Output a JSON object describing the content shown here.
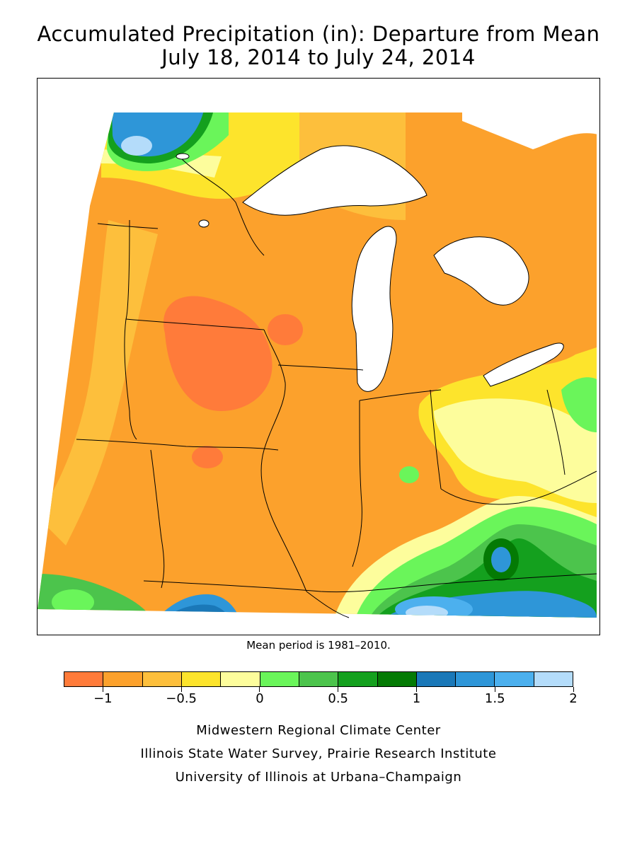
{
  "title": {
    "line1": "Accumulated Precipitation (in): Departure from Mean",
    "line2": "July 18, 2014 to July 24, 2014"
  },
  "note": "Mean period is 1981–2010.",
  "legend": {
    "colors": [
      "#ff7b3a",
      "#fca12c",
      "#fdbf3c",
      "#fde42c",
      "#fdfd9c",
      "#6af55a",
      "#4cc44c",
      "#14a01e",
      "#047a04",
      "#1a78b8",
      "#2e96d8",
      "#4cb0ee",
      "#b4dcfa"
    ],
    "tick_labels": [
      "−1",
      "−0.5",
      "0",
      "0.5",
      "1",
      "1.5",
      "2"
    ],
    "tick_values": [
      -1,
      -0.5,
      0,
      0.5,
      1,
      1.5,
      2
    ],
    "min": -1.25,
    "max": 2
  },
  "credits": [
    "Midwestern Regional Climate Center",
    "Illinois State Water Survey, Prairie Research Institute",
    "University of Illinois at Urbana–Champaign"
  ]
}
